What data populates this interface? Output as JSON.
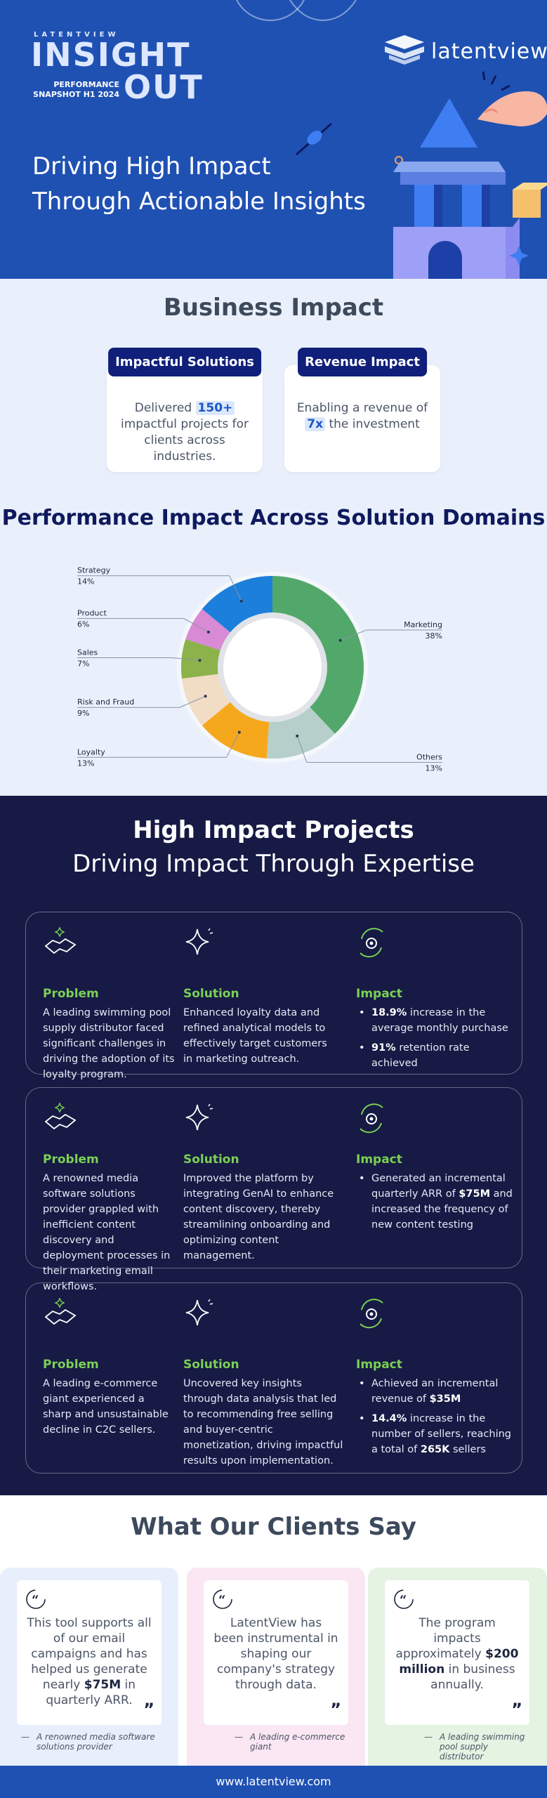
{
  "hero": {
    "brand_small": "LATENTVIEW",
    "word_insight": "INSIGHT",
    "word_out": "OUT",
    "snapshot_line1": "PERFORMANCE",
    "snapshot_line2": "SNAPSHOT H1 2024",
    "headline_line1": "Driving High Impact",
    "headline_line2": "Through Actionable Insights",
    "logo_text": "latentview",
    "colors": {
      "background": "#1f51b3",
      "accent": "#3f7ef2"
    }
  },
  "business": {
    "title": "Business Impact",
    "cards": [
      {
        "tag": "Impactful Solutions",
        "pre": "Delivered",
        "highlight": "150+",
        "post": "impactful projects for clients across industries."
      },
      {
        "tag": "Revenue Impact",
        "pre": "Enabling a revenue of",
        "highlight": "7x",
        "post": "the investment"
      }
    ]
  },
  "performance": {
    "title": "Performance Impact Across Solution Domains"
  },
  "chart_data": {
    "type": "pie",
    "donut": true,
    "slices": [
      {
        "label": "Marketing",
        "value": 38,
        "value_label": "38%",
        "color": "#52a86a"
      },
      {
        "label": "Others",
        "value": 13,
        "value_label": "13%",
        "color": "#b6cfcb"
      },
      {
        "label": "Loyalty",
        "value": 13,
        "value_label": "13%",
        "color": "#f6a81c"
      },
      {
        "label": "Risk and Fraud",
        "value": 9,
        "value_label": "9%",
        "color": "#f1dcc6"
      },
      {
        "label": "Sales",
        "value": 7,
        "value_label": "7%",
        "color": "#8cb34b"
      },
      {
        "label": "Product",
        "value": 6,
        "value_label": "6%",
        "color": "#d88ad4"
      },
      {
        "label": "Strategy",
        "value": 14,
        "value_label": "14%",
        "color": "#1b7fdb"
      }
    ]
  },
  "projects": {
    "title": "High Impact Projects",
    "subtitle": "Driving Impact Through Expertise",
    "labels": {
      "problem": "Problem",
      "solution": "Solution",
      "impact": "Impact"
    },
    "items": [
      {
        "problem": "A leading swimming pool supply distributor faced significant challenges in driving the adoption of its loyalty program.",
        "solution": "Enhanced loyalty data and refined analytical models to effectively target customers in marketing outreach.",
        "impact": [
          {
            "bold": "18.9%",
            "text": " increase in the average monthly purchase"
          },
          {
            "bold": "91%",
            "text": " retention rate achieved"
          }
        ]
      },
      {
        "problem": "A renowned media software solutions provider grappled with inefficient content discovery and deployment processes in their marketing email workflows.",
        "solution": "Improved the platform by integrating GenAI to enhance content discovery, thereby streamlining onboarding and optimizing content management.",
        "impact": [
          {
            "pre": "Generated an incremental quarterly ARR of ",
            "bold": "$75M",
            "text": " and increased the frequency of new content testing"
          }
        ]
      },
      {
        "problem": "A leading e-commerce giant experienced a sharp and unsustainable decline in C2C sellers.",
        "solution": "Uncovered key insights through data analysis that led to recommending free selling and buyer-centric monetization, driving impactful results upon implementation.",
        "impact": [
          {
            "pre": "Achieved an incremental revenue of ",
            "bold": "$35M",
            "text": ""
          },
          {
            "bold": "14.4%",
            "text": " increase in the number of sellers, reaching a total of ",
            "bold2": "265K",
            "text2": " sellers"
          }
        ]
      }
    ]
  },
  "clients": {
    "title": "What Our Clients Say",
    "quotes": [
      {
        "pre": "This tool supports all of our email campaigns and has helped us generate nearly ",
        "bold": "$75M",
        "post": " in quarterly ARR.",
        "attribution": "A renowned media software solutions provider",
        "bg": "#e8effc"
      },
      {
        "pre": "LatentView has been instrumental in shaping our company's strategy through data.",
        "bold": "",
        "post": "",
        "attribution": "A leading e-commerce giant",
        "bg": "#fbe6f3"
      },
      {
        "pre": "The program impacts approximately ",
        "bold": "$200 million",
        "post": " in business annually.",
        "attribution": "A leading swimming pool supply distributor",
        "bg": "#e4f3e2"
      }
    ]
  },
  "footer": {
    "url": "www.latentview.com"
  }
}
